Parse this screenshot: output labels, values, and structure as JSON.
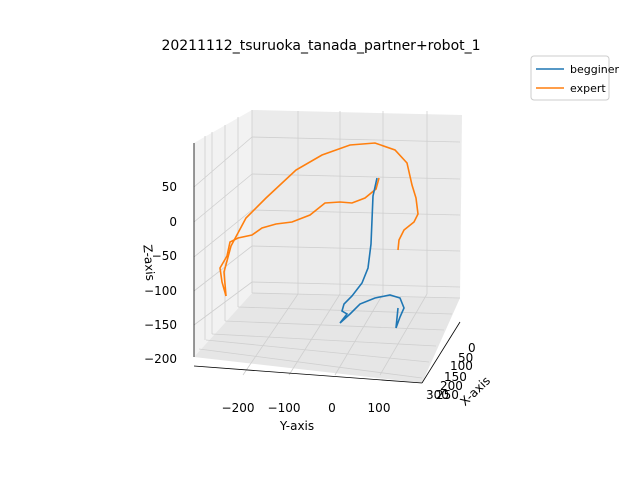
{
  "chart_data": {
    "type": "line",
    "projection": "3d",
    "title": "20211112_tsuruoka_tanada_partner+robot_1",
    "xlabel": "X-axis",
    "ylabel": "Y-axis",
    "zlabel": "Z-axis",
    "x_ticks": [
      "0",
      "50",
      "100",
      "150",
      "200",
      "250",
      "300"
    ],
    "y_ticks": [
      "−200",
      "−100",
      "0",
      "100"
    ],
    "z_ticks": [
      "50",
      "0",
      "−50",
      "−100",
      "−150",
      "−200"
    ],
    "grid": true,
    "legend_position": "top-right",
    "series": [
      {
        "name": "begginer",
        "color": "#1f77b4",
        "trace": [
          [
            377,
            178
          ],
          [
            373,
            196
          ],
          [
            372,
            220
          ],
          [
            371,
            244
          ],
          [
            368,
            268
          ],
          [
            362,
            283
          ],
          [
            352,
            296
          ],
          [
            344,
            304
          ],
          [
            342,
            311
          ],
          [
            347,
            314
          ],
          [
            340,
            323
          ],
          [
            350,
            314
          ],
          [
            360,
            304
          ],
          [
            375,
            298
          ],
          [
            390,
            295
          ],
          [
            400,
            298
          ],
          [
            404,
            308
          ],
          [
            400,
            317
          ],
          [
            396,
            328
          ],
          [
            397,
            318
          ],
          [
            398,
            308
          ]
        ]
      },
      {
        "name": "expert",
        "color": "#ff7f0e",
        "trace": [
          [
            226,
            296
          ],
          [
            222,
            282
          ],
          [
            220,
            270
          ],
          [
            226,
            258
          ],
          [
            229,
            243
          ],
          [
            236,
            238
          ],
          [
            248,
            238
          ],
          [
            256,
            232
          ],
          [
            270,
            227
          ],
          [
            290,
            224
          ],
          [
            308,
            217
          ],
          [
            323,
            205
          ],
          [
            336,
            204
          ],
          [
            350,
            206
          ],
          [
            365,
            200
          ],
          [
            377,
            190
          ],
          [
            380,
            180
          ],
          [
            376,
            177
          ],
          [
            380,
            182
          ],
          [
            379,
            180
          ],
          [
            377,
            178
          ],
          [
            376,
            176
          ],
          [
            377,
            180
          ],
          [
            380,
            180
          ],
          [
            382,
            177
          ],
          [
            380,
            176
          ],
          [
            378,
            179
          ],
          [
            381,
            178
          ],
          [
            379,
            177
          ],
          [
            380,
            178
          ],
          [
            381,
            180
          ],
          [
            380,
            178
          ],
          [
            380,
            179
          ],
          [
            379,
            178
          ],
          [
            380,
            178
          ],
          [
            380,
            177
          ],
          [
            380,
            179
          ],
          [
            379,
            180
          ],
          [
            381,
            178
          ],
          [
            381,
            180
          ],
          [
            380,
            178
          ],
          [
            381,
            178
          ],
          [
            381,
            179
          ],
          [
            380,
            179
          ],
          [
            382,
            178
          ],
          [
            381,
            177
          ],
          [
            380,
            178
          ],
          [
            381,
            179
          ],
          [
            380,
            178
          ],
          [
            379,
            178
          ],
          [
            379,
            179
          ],
          [
            378,
            180
          ],
          [
            380,
            178
          ],
          [
            381,
            177
          ],
          [
            380,
            180
          ],
          [
            381,
            180
          ],
          [
            380,
            179
          ],
          [
            381,
            178
          ],
          [
            380,
            177
          ],
          [
            380,
            179
          ],
          [
            381,
            180
          ],
          [
            379,
            179
          ],
          [
            379,
            177
          ],
          [
            380,
            177
          ],
          [
            381,
            179
          ],
          [
            380,
            180
          ],
          [
            381,
            179
          ],
          [
            381,
            178
          ],
          [
            380,
            178
          ],
          [
            381,
            180
          ],
          [
            380,
            181
          ],
          [
            380,
            179
          ],
          [
            379,
            178
          ],
          [
            380,
            178
          ],
          [
            381,
            178
          ],
          [
            380,
            179
          ],
          [
            378,
            178
          ],
          [
            381,
            176
          ],
          [
            380,
            178
          ],
          [
            380,
            177
          ]
        ],
        "trace_main": [
          [
            226,
            296
          ],
          [
            222,
            282
          ],
          [
            220,
            268
          ],
          [
            227,
            256
          ],
          [
            230,
            242
          ],
          [
            238,
            238
          ],
          [
            252,
            235
          ],
          [
            262,
            228
          ],
          [
            276,
            224
          ],
          [
            292,
            222
          ],
          [
            310,
            215
          ],
          [
            325,
            203
          ],
          [
            340,
            202
          ],
          [
            352,
            203
          ],
          [
            365,
            198
          ],
          [
            376,
            189
          ],
          [
            378,
            182
          ],
          [
            379,
            178
          ]
        ]
      }
    ]
  }
}
